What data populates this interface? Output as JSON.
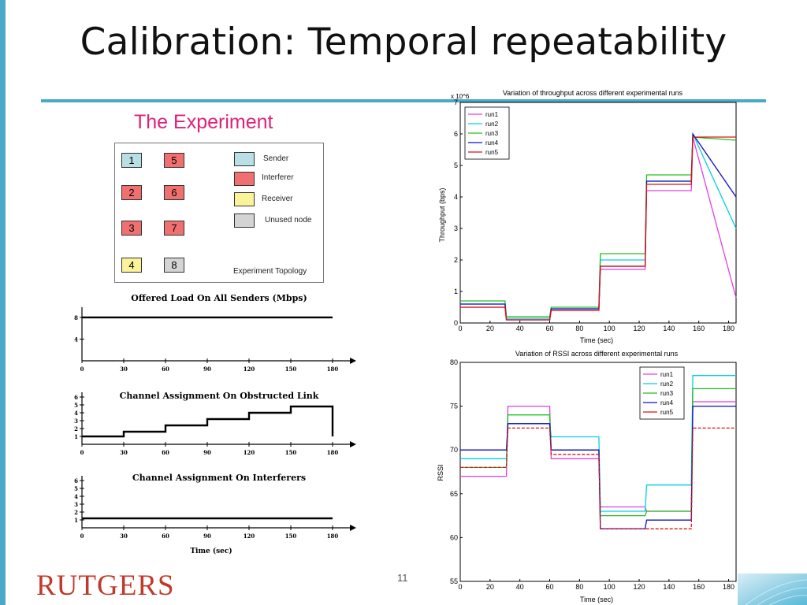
{
  "slide": {
    "title": "Calibration: Temporal repeatability",
    "page_number": "11",
    "logo_text": "RUTGERS",
    "accent_color": "#4aa8c8",
    "heading_color": "#e0207a"
  },
  "experiment": {
    "heading": "The Experiment",
    "topology_caption": "Experiment Topology",
    "nodes": [
      {
        "label": "1",
        "role": "Sender",
        "color": "#b8dfe3"
      },
      {
        "label": "5",
        "role": "Interferer",
        "color": "#f07070"
      },
      {
        "label": "2",
        "role": "Interferer",
        "color": "#f07070"
      },
      {
        "label": "6",
        "role": "Interferer",
        "color": "#f07070"
      },
      {
        "label": "3",
        "role": "Interferer",
        "color": "#f07070"
      },
      {
        "label": "7",
        "role": "Interferer",
        "color": "#f07070"
      },
      {
        "label": "4",
        "role": "Receiver",
        "color": "#fbf39a"
      },
      {
        "label": "8",
        "role": "Unused node",
        "color": "#d4d4d4"
      }
    ],
    "legend": [
      {
        "label": "Sender",
        "color": "#b8dfe3"
      },
      {
        "label": "Interferer",
        "color": "#f07070"
      },
      {
        "label": "Receiver",
        "color": "#fbf39a"
      },
      {
        "label": "Unused node",
        "color": "#d4d4d4"
      }
    ]
  },
  "chart_data": [
    {
      "type": "line",
      "title": "Offered Load On All Senders (Mbps)",
      "x": [
        0,
        180
      ],
      "y": [
        8,
        8
      ],
      "xticks": [
        0,
        30,
        60,
        90,
        120,
        150,
        180
      ],
      "yticks": [
        4,
        8
      ],
      "xlim": [
        0,
        180
      ],
      "ylim": [
        0,
        9
      ]
    },
    {
      "type": "line",
      "title": "Channel Assignment On Obstructed Link",
      "x": [
        0,
        30,
        30,
        60,
        60,
        90,
        90,
        120,
        120,
        150,
        150,
        180,
        180
      ],
      "y": [
        1,
        1,
        1.6,
        1.6,
        2.4,
        2.4,
        3.2,
        3.2,
        4,
        4,
        4.8,
        4.8,
        1
      ],
      "xticks": [
        0,
        30,
        60,
        90,
        120,
        150,
        180
      ],
      "yticks": [
        1,
        2,
        3,
        4,
        5,
        6
      ],
      "xlim": [
        0,
        180
      ],
      "ylim": [
        0,
        6
      ]
    },
    {
      "type": "line",
      "title": "Channel Assignment On Interferers",
      "xlabel": "Time (sec)",
      "x": [
        0,
        180
      ],
      "y": [
        1.2,
        1.2
      ],
      "xticks": [
        0,
        30,
        60,
        90,
        120,
        150,
        180
      ],
      "yticks": [
        1,
        2,
        3,
        4,
        5,
        6
      ],
      "xlim": [
        0,
        180
      ],
      "ylim": [
        0,
        6
      ]
    },
    {
      "type": "line",
      "title": "Variation of throughput across different experimental runs",
      "xlabel": "Time (sec)",
      "ylabel": "Throughput (bps)",
      "y_multiplier": "x 10^6",
      "xlim": [
        0,
        185
      ],
      "ylim": [
        0,
        7
      ],
      "xticks": [
        0,
        20,
        40,
        60,
        80,
        100,
        120,
        140,
        160,
        180
      ],
      "yticks": [
        0,
        1,
        2,
        3,
        4,
        5,
        6,
        7
      ],
      "legend_position": "top-left",
      "x": [
        0,
        30,
        31,
        60,
        61,
        93,
        94,
        124,
        125,
        155,
        156,
        185
      ],
      "series": [
        {
          "name": "run1",
          "color": "#e040e0",
          "values": [
            0.5,
            0.5,
            0.1,
            0.1,
            0.4,
            0.4,
            1.7,
            1.7,
            4.2,
            4.2,
            5.9,
            0.8
          ]
        },
        {
          "name": "run2",
          "color": "#00d0e0",
          "values": [
            0.6,
            0.6,
            0.15,
            0.15,
            0.45,
            0.45,
            2.0,
            2.0,
            4.5,
            4.5,
            6.0,
            3.0
          ]
        },
        {
          "name": "run3",
          "color": "#20c020",
          "values": [
            0.7,
            0.7,
            0.2,
            0.2,
            0.5,
            0.5,
            2.2,
            2.2,
            4.7,
            4.7,
            5.9,
            5.8
          ]
        },
        {
          "name": "run4",
          "color": "#1010c0",
          "values": [
            0.6,
            0.6,
            0.1,
            0.1,
            0.45,
            0.45,
            1.8,
            1.8,
            4.5,
            4.5,
            6.0,
            4.0
          ]
        },
        {
          "name": "run5",
          "color": "#e01010",
          "values": [
            0.5,
            0.5,
            0.1,
            0.1,
            0.4,
            0.4,
            1.8,
            1.8,
            4.4,
            4.4,
            5.9,
            5.9
          ]
        }
      ]
    },
    {
      "type": "line",
      "title": "Variation of RSSI across different experimental runs",
      "xlabel": "Time (sec)",
      "ylabel": "RSSI",
      "xlim": [
        0,
        185
      ],
      "ylim": [
        55,
        80
      ],
      "xticks": [
        0,
        20,
        40,
        60,
        80,
        100,
        120,
        140,
        160,
        180
      ],
      "yticks": [
        55,
        60,
        65,
        70,
        75,
        80
      ],
      "legend_position": "top-right",
      "x": [
        0,
        31,
        32,
        60,
        61,
        93,
        94,
        124,
        125,
        155,
        156,
        185
      ],
      "series": [
        {
          "name": "run1",
          "color": "#e040e0",
          "values": [
            67,
            67,
            75,
            75,
            69,
            69,
            63.5,
            63.5,
            63,
            63,
            75.5,
            75.5
          ]
        },
        {
          "name": "run2",
          "color": "#00d0e0",
          "values": [
            69,
            69,
            73,
            73,
            71.5,
            71.5,
            63,
            63,
            66,
            66,
            78.5,
            78.5
          ]
        },
        {
          "name": "run3",
          "color": "#20c020",
          "values": [
            68,
            68,
            74,
            74,
            70,
            70,
            62.5,
            62.5,
            63,
            63,
            77,
            77
          ]
        },
        {
          "name": "run4",
          "color": "#1010c0",
          "values": [
            70,
            70,
            73,
            73,
            70,
            70,
            61,
            61,
            62,
            62,
            75,
            75
          ]
        },
        {
          "name": "run5",
          "color": "#e01010",
          "values": [
            68,
            68,
            72.5,
            72.5,
            69.5,
            69.5,
            61,
            61,
            61,
            61,
            72.5,
            72.5
          ]
        }
      ]
    }
  ]
}
